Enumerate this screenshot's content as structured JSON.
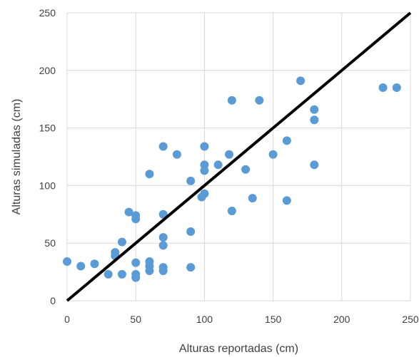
{
  "chart_data": {
    "type": "scatter",
    "xlabel": "Alturas reportadas (cm)",
    "ylabel": "Alturas simuladas (cm)",
    "xlim": [
      0,
      250
    ],
    "ylim": [
      0,
      250
    ],
    "xticks": [
      "0",
      "50",
      "100",
      "150",
      "200",
      "250"
    ],
    "yticks": [
      "0",
      "50",
      "100",
      "150",
      "200",
      "250"
    ],
    "grid": true,
    "legend": "none",
    "colors": {
      "points": "#5B9BD5",
      "line": "#000000",
      "grid": "#D9D9D9",
      "text": "#404040"
    },
    "reference_line": {
      "x": [
        0,
        250
      ],
      "y": [
        0,
        250
      ]
    },
    "points": [
      {
        "x": 0,
        "y": 34
      },
      {
        "x": 10,
        "y": 30
      },
      {
        "x": 20,
        "y": 32
      },
      {
        "x": 30,
        "y": 23
      },
      {
        "x": 35,
        "y": 39
      },
      {
        "x": 35,
        "y": 42
      },
      {
        "x": 40,
        "y": 51
      },
      {
        "x": 40,
        "y": 23
      },
      {
        "x": 45,
        "y": 77
      },
      {
        "x": 50,
        "y": 74
      },
      {
        "x": 50,
        "y": 71
      },
      {
        "x": 50,
        "y": 33
      },
      {
        "x": 50,
        "y": 23
      },
      {
        "x": 50,
        "y": 20
      },
      {
        "x": 60,
        "y": 110
      },
      {
        "x": 60,
        "y": 34
      },
      {
        "x": 60,
        "y": 30
      },
      {
        "x": 60,
        "y": 26
      },
      {
        "x": 70,
        "y": 134
      },
      {
        "x": 70,
        "y": 75
      },
      {
        "x": 70,
        "y": 55
      },
      {
        "x": 70,
        "y": 48
      },
      {
        "x": 70,
        "y": 29
      },
      {
        "x": 70,
        "y": 26
      },
      {
        "x": 80,
        "y": 127
      },
      {
        "x": 90,
        "y": 104
      },
      {
        "x": 90,
        "y": 60
      },
      {
        "x": 90,
        "y": 29
      },
      {
        "x": 98,
        "y": 90
      },
      {
        "x": 100,
        "y": 134
      },
      {
        "x": 100,
        "y": 118
      },
      {
        "x": 100,
        "y": 113
      },
      {
        "x": 100,
        "y": 93
      },
      {
        "x": 110,
        "y": 118
      },
      {
        "x": 118,
        "y": 127
      },
      {
        "x": 120,
        "y": 174
      },
      {
        "x": 120,
        "y": 78
      },
      {
        "x": 130,
        "y": 114
      },
      {
        "x": 135,
        "y": 89
      },
      {
        "x": 140,
        "y": 174
      },
      {
        "x": 150,
        "y": 127
      },
      {
        "x": 160,
        "y": 139
      },
      {
        "x": 160,
        "y": 87
      },
      {
        "x": 170,
        "y": 191
      },
      {
        "x": 180,
        "y": 166
      },
      {
        "x": 180,
        "y": 157
      },
      {
        "x": 180,
        "y": 118
      },
      {
        "x": 230,
        "y": 185
      },
      {
        "x": 240,
        "y": 185
      }
    ]
  }
}
